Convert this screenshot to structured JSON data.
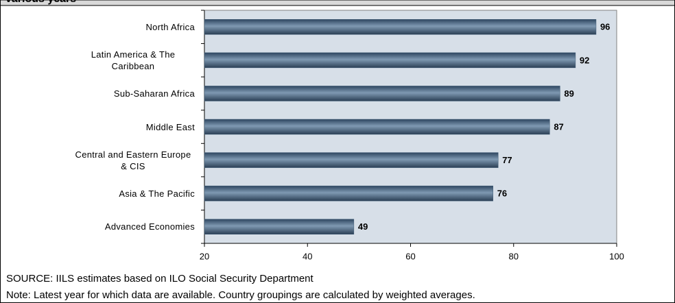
{
  "chart_data": {
    "type": "bar",
    "orientation": "horizontal",
    "title": "various years",
    "categories": [
      "North Africa",
      "Latin America & The Caribbean",
      "Sub-Saharan Africa",
      "Middle East",
      "Central and Eastern Europe & CIS",
      "Asia & The Pacific",
      "Advanced Economies"
    ],
    "values": [
      96,
      92,
      89,
      87,
      77,
      76,
      49
    ],
    "color": "#3d5a75",
    "xlim": [
      20,
      100
    ],
    "xticks": [
      20,
      40,
      60,
      80,
      100
    ],
    "source": "SOURCE: IILS estimates based on ILO Social Security Department",
    "note": "Note: Latest year for which data are available. Country groupings are calculated by weighted averages."
  }
}
